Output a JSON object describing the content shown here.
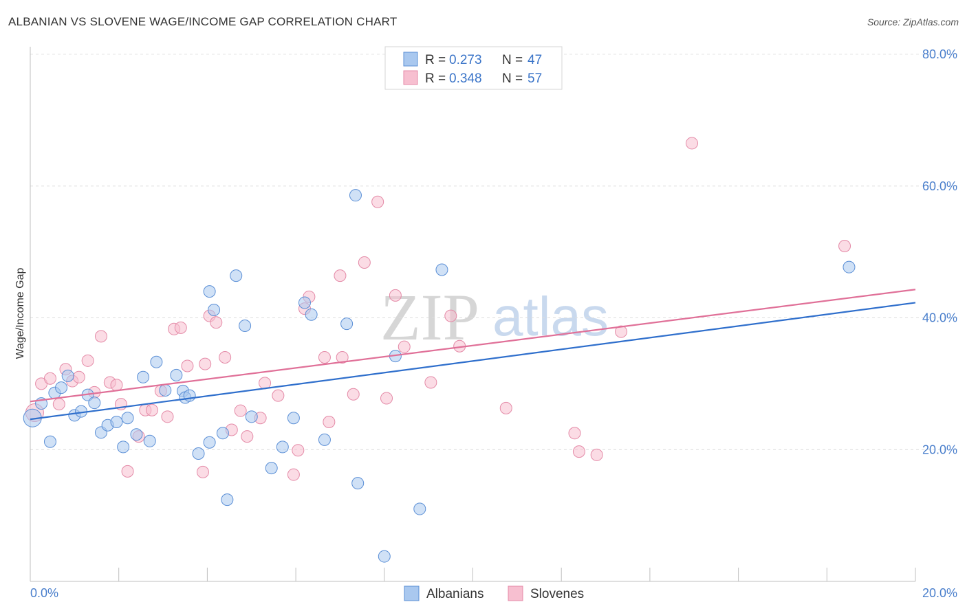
{
  "title": "ALBANIAN VS SLOVENE WAGE/INCOME GAP CORRELATION CHART",
  "source": "Source: ZipAtlas.com",
  "watermark": {
    "zip": "ZIP",
    "atlas": "atlas"
  },
  "legend": {
    "r_label": "R =",
    "n_label": "N =",
    "series": [
      {
        "r": "0.273",
        "n": "47"
      },
      {
        "r": "0.348",
        "n": "57"
      }
    ]
  },
  "chart_data": {
    "type": "scatter",
    "title": "ALBANIAN VS SLOVENE WAGE/INCOME GAP CORRELATION CHART",
    "xlabel": "",
    "ylabel": "Wage/Income Gap",
    "xlim": [
      0,
      20
    ],
    "ylim": [
      0,
      80
    ],
    "x_tick_labels": [
      "0.0%",
      "20.0%"
    ],
    "y_ticks": [
      20,
      40,
      60,
      80
    ],
    "y_tick_labels": [
      "20.0%",
      "40.0%",
      "60.0%",
      "80.0%"
    ],
    "grid": true,
    "legend_position": "top-center",
    "colors": {
      "Albanians": {
        "fill": "#a9c8ef",
        "stroke": "#5b8fd6",
        "line": "#2f6fcc"
      },
      "Slovenes": {
        "fill": "#f7bfd0",
        "stroke": "#e48aa7",
        "line": "#e07098"
      }
    },
    "series": [
      {
        "name": "Albanians",
        "r": 0.273,
        "n": 47,
        "trend": [
          [
            0,
            24.6
          ],
          [
            20,
            42.3
          ]
        ],
        "points": [
          [
            0.05,
            24.8
          ],
          [
            0.25,
            27.0
          ],
          [
            0.45,
            21.2
          ],
          [
            0.55,
            28.6
          ],
          [
            0.7,
            29.4
          ],
          [
            0.85,
            31.2
          ],
          [
            1.0,
            25.2
          ],
          [
            1.15,
            25.8
          ],
          [
            1.3,
            28.3
          ],
          [
            1.45,
            27.1
          ],
          [
            1.6,
            22.6
          ],
          [
            1.75,
            23.7
          ],
          [
            1.95,
            24.2
          ],
          [
            2.1,
            20.4
          ],
          [
            2.2,
            24.8
          ],
          [
            2.4,
            22.3
          ],
          [
            2.55,
            31.0
          ],
          [
            2.7,
            21.3
          ],
          [
            2.85,
            33.3
          ],
          [
            3.05,
            29.0
          ],
          [
            3.3,
            31.3
          ],
          [
            3.45,
            28.9
          ],
          [
            3.5,
            27.9
          ],
          [
            3.6,
            28.2
          ],
          [
            3.8,
            19.4
          ],
          [
            4.05,
            21.1
          ],
          [
            4.05,
            44.0
          ],
          [
            4.15,
            41.2
          ],
          [
            4.35,
            22.5
          ],
          [
            4.45,
            12.4
          ],
          [
            4.65,
            46.4
          ],
          [
            4.85,
            38.8
          ],
          [
            5.0,
            25.0
          ],
          [
            5.45,
            17.2
          ],
          [
            5.7,
            20.4
          ],
          [
            5.95,
            24.8
          ],
          [
            6.2,
            42.3
          ],
          [
            6.35,
            40.5
          ],
          [
            6.65,
            21.5
          ],
          [
            7.15,
            39.1
          ],
          [
            7.35,
            58.6
          ],
          [
            7.4,
            14.9
          ],
          [
            8.0,
            3.8
          ],
          [
            8.25,
            34.2
          ],
          [
            8.8,
            11.0
          ],
          [
            9.3,
            47.3
          ],
          [
            18.5,
            47.7
          ]
        ]
      },
      {
        "name": "Slovenes",
        "r": 0.348,
        "n": 57,
        "trend": [
          [
            0,
            27.3
          ],
          [
            20,
            44.3
          ]
        ],
        "points": [
          [
            0.1,
            25.6
          ],
          [
            0.25,
            30.0
          ],
          [
            0.45,
            30.8
          ],
          [
            0.65,
            26.9
          ],
          [
            0.8,
            32.2
          ],
          [
            0.95,
            30.4
          ],
          [
            1.1,
            31.0
          ],
          [
            1.3,
            33.5
          ],
          [
            1.45,
            28.7
          ],
          [
            1.6,
            37.2
          ],
          [
            1.8,
            30.2
          ],
          [
            1.95,
            29.8
          ],
          [
            2.05,
            26.9
          ],
          [
            2.2,
            16.7
          ],
          [
            2.45,
            22.0
          ],
          [
            2.6,
            26.0
          ],
          [
            2.75,
            26.0
          ],
          [
            2.95,
            28.9
          ],
          [
            3.1,
            25.0
          ],
          [
            3.25,
            38.3
          ],
          [
            3.4,
            38.5
          ],
          [
            3.55,
            32.7
          ],
          [
            3.9,
            16.6
          ],
          [
            3.95,
            33.0
          ],
          [
            4.05,
            40.3
          ],
          [
            4.2,
            39.3
          ],
          [
            4.4,
            34.0
          ],
          [
            4.55,
            23.0
          ],
          [
            4.75,
            25.9
          ],
          [
            4.9,
            22.0
          ],
          [
            5.2,
            24.8
          ],
          [
            5.3,
            30.1
          ],
          [
            5.6,
            28.2
          ],
          [
            5.95,
            16.2
          ],
          [
            6.05,
            19.9
          ],
          [
            6.2,
            41.4
          ],
          [
            6.3,
            43.2
          ],
          [
            6.65,
            34.0
          ],
          [
            6.75,
            24.2
          ],
          [
            7.0,
            46.4
          ],
          [
            7.05,
            34.0
          ],
          [
            7.3,
            28.4
          ],
          [
            7.55,
            48.4
          ],
          [
            7.85,
            57.6
          ],
          [
            8.05,
            27.8
          ],
          [
            8.25,
            43.4
          ],
          [
            8.45,
            35.6
          ],
          [
            9.05,
            30.2
          ],
          [
            9.5,
            40.3
          ],
          [
            9.7,
            35.7
          ],
          [
            10.75,
            26.3
          ],
          [
            12.3,
            22.5
          ],
          [
            12.4,
            19.7
          ],
          [
            12.8,
            19.2
          ],
          [
            13.35,
            37.9
          ],
          [
            14.95,
            66.5
          ],
          [
            18.4,
            50.9
          ]
        ]
      }
    ]
  }
}
